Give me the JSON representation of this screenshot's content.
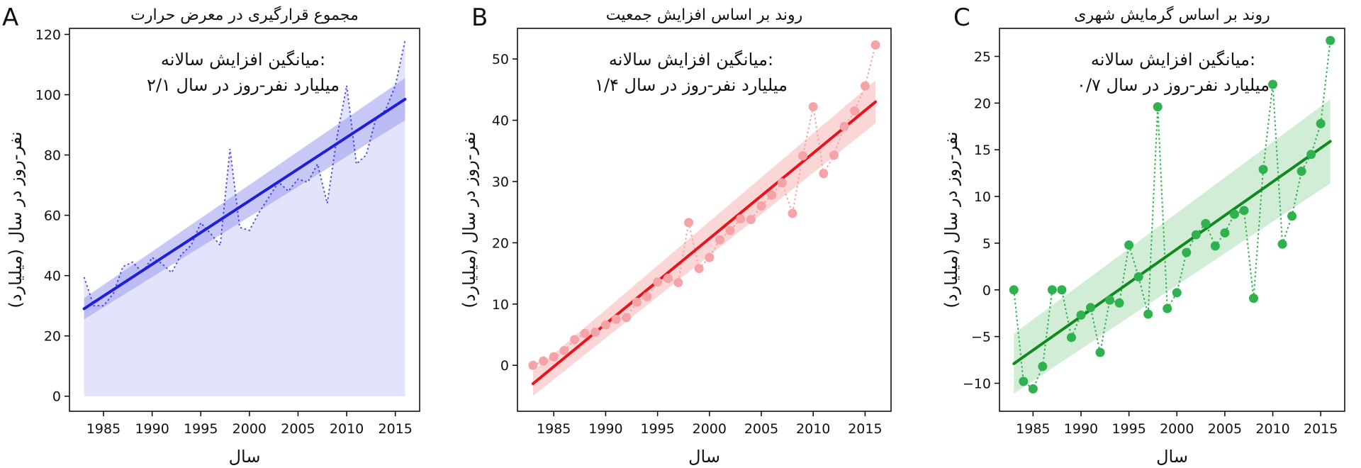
{
  "chart_data": [
    {
      "type": "line",
      "panel_letter": "A",
      "title": "مجموع قرارگیری در معرض حرارت",
      "xlabel": "سال",
      "ylabel": "نفر-روز در سال (میلیارد)",
      "annotation_line1": "میانگین افزایش سالانه:",
      "annotation_line2": "۲/۱ میلیارد نفر-روز در سال",
      "xlim": [
        1981.5,
        2017.5
      ],
      "ylim": [
        -5,
        122
      ],
      "xticks": [
        1985,
        1990,
        1995,
        2000,
        2005,
        2010,
        2015
      ],
      "yticks": [
        0,
        20,
        40,
        60,
        80,
        100,
        120
      ],
      "x": [
        1983,
        1984,
        1985,
        1986,
        1987,
        1988,
        1989,
        1990,
        1991,
        1992,
        1993,
        1994,
        1995,
        1996,
        1997,
        1998,
        1999,
        2000,
        2001,
        2002,
        2003,
        2004,
        2005,
        2006,
        2007,
        2008,
        2009,
        2010,
        2011,
        2012,
        2013,
        2014,
        2015,
        2016
      ],
      "values": [
        39.5,
        30,
        30,
        34,
        43,
        44.5,
        41,
        46,
        44,
        41,
        47,
        50,
        57.5,
        54,
        50,
        82,
        56,
        55,
        61,
        66,
        71,
        68,
        72,
        71,
        77,
        64,
        86,
        103,
        77,
        80,
        92,
        95,
        103,
        118
      ],
      "trend": {
        "start": [
          1983,
          29
        ],
        "end": [
          2016,
          98.5
        ],
        "ci_half_width_start": 3.5,
        "ci_half_width_end": 7
      },
      "style": "dotted-line-area",
      "color": "#1f1fd6",
      "fill_color": "#e3e3fb",
      "ci_color": "#9b9bf0"
    },
    {
      "type": "scatter",
      "panel_letter": "B",
      "title": "روند بر اساس افزایش جمعیت",
      "xlabel": "سال",
      "ylabel": "نفر-روز در سال (میلیارد)",
      "annotation_line1": "میانگین افزایش سالانه:",
      "annotation_line2": "۱/۴ میلیارد نفر-روز در سال",
      "xlim": [
        1981.5,
        2017.5
      ],
      "ylim": [
        -7.5,
        55
      ],
      "xticks": [
        1985,
        1990,
        1995,
        2000,
        2005,
        2010,
        2015
      ],
      "yticks": [
        0,
        10,
        20,
        30,
        40,
        50
      ],
      "x": [
        1983,
        1984,
        1985,
        1986,
        1987,
        1988,
        1989,
        1990,
        1991,
        1992,
        1993,
        1994,
        1995,
        1996,
        1997,
        1998,
        1999,
        2000,
        2001,
        2002,
        2003,
        2004,
        2005,
        2006,
        2007,
        2008,
        2009,
        2010,
        2011,
        2012,
        2013,
        2014,
        2015,
        2016
      ],
      "values": [
        0,
        0.7,
        1.4,
        2.4,
        4.2,
        5.2,
        5.4,
        6.6,
        7.5,
        7.8,
        10.3,
        11.2,
        13.6,
        14.2,
        13.5,
        23.3,
        15.8,
        17.6,
        20.5,
        22,
        23.9,
        23.8,
        26,
        27.8,
        29.8,
        24.8,
        34.2,
        42.2,
        31.3,
        34.3,
        39,
        41.5,
        45.6,
        52.3
      ],
      "trend": {
        "start": [
          1983,
          -3
        ],
        "end": [
          2016,
          43
        ],
        "ci_half_width_start": 2,
        "ci_half_width_end": 3.5
      },
      "style": "dotted-line-markers",
      "color": "#e8141b",
      "marker_color": "#f5a3a6",
      "ci_color": "#f8c4c6"
    },
    {
      "type": "scatter",
      "panel_letter": "C",
      "title": "روند بر اساس گرمایش شهری",
      "xlabel": "سال",
      "ylabel": "نفر-روز در سال (میلیارد)",
      "annotation_line1": "میانگین افزایش سالانه:",
      "annotation_line2": "۰/۷ میلیارد نفر-روز در سال",
      "xlim": [
        1981.5,
        2017.5
      ],
      "ylim": [
        -13,
        28
      ],
      "xticks": [
        1985,
        1990,
        1995,
        2000,
        2005,
        2010,
        2015
      ],
      "yticks": [
        -10,
        -5,
        0,
        5,
        10,
        15,
        20,
        25
      ],
      "x": [
        1983,
        1984,
        1985,
        1986,
        1987,
        1988,
        1989,
        1990,
        1991,
        1992,
        1993,
        1994,
        1995,
        1996,
        1997,
        1998,
        1999,
        2000,
        2001,
        2002,
        2003,
        2004,
        2005,
        2006,
        2007,
        2008,
        2009,
        2010,
        2011,
        2012,
        2013,
        2014,
        2015,
        2016
      ],
      "values": [
        0,
        -9.8,
        -10.6,
        -8.2,
        0,
        0,
        -5.1,
        -2.7,
        -1.9,
        -6.7,
        -1.1,
        -1.4,
        4.8,
        1.4,
        -2.6,
        19.6,
        -2,
        -0.3,
        4,
        5.9,
        7.1,
        4.7,
        6.1,
        8.1,
        8.5,
        -0.9,
        12.9,
        22,
        4.9,
        7.9,
        12.7,
        14.5,
        17.8,
        26.7
      ],
      "trend": {
        "start": [
          1983,
          -7.9
        ],
        "end": [
          2016,
          15.9
        ],
        "ci_half_width_start": 3.2,
        "ci_half_width_end": 4.5
      },
      "style": "dotted-line-markers",
      "color": "#0f8a1e",
      "marker_color": "#2fb14f",
      "ci_color": "#bfe6c5"
    }
  ]
}
